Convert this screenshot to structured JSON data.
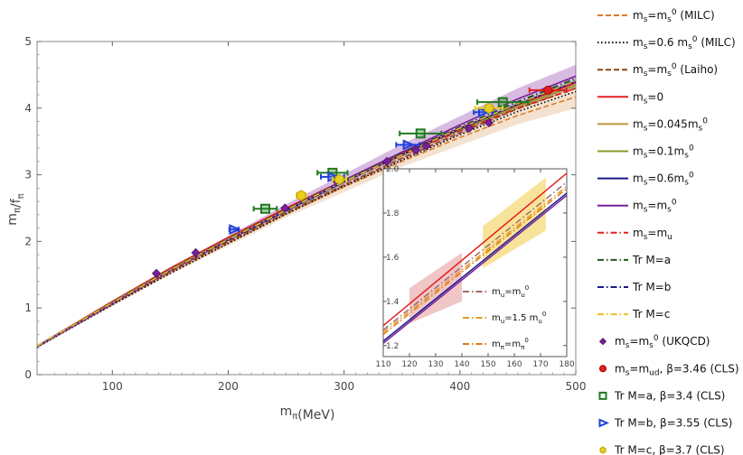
{
  "chart_data": {
    "type": "line",
    "xlabel": "m_π(MeV)",
    "ylabel": "m_π/f_π",
    "xlim": [
      35,
      500
    ],
    "ylim": [
      0,
      5
    ],
    "x_ticks": [
      100,
      200,
      300,
      400,
      500
    ],
    "y_ticks": [
      0,
      1,
      2,
      3,
      4,
      5
    ],
    "series": [
      {
        "name": "ms=ms0 (MILC)",
        "label": "m_s=m_s^0 (MILC)",
        "style": "dash",
        "color": "#e07b2a",
        "x": [
          35,
          100,
          150,
          200,
          250,
          300,
          350,
          400,
          450,
          500
        ],
        "values": [
          0.42,
          1.06,
          1.53,
          1.98,
          2.41,
          2.82,
          3.2,
          3.56,
          3.89,
          4.17
        ]
      },
      {
        "name": "ms=0.6 ms0 (MILC)",
        "label": "m_s=0.6 m_s^0 (MILC)",
        "style": "dot",
        "color": "#000000",
        "x": [
          35,
          100,
          150,
          200,
          250,
          300,
          350,
          400,
          450,
          500
        ],
        "values": [
          0.41,
          1.05,
          1.52,
          1.97,
          2.41,
          2.83,
          3.22,
          3.6,
          3.95,
          4.25
        ]
      },
      {
        "name": "ms=ms0 (Laiho)",
        "label": "m_s=m_s^0 (Laiho)",
        "style": "dash",
        "color": "#8b4513",
        "x": [
          35,
          100,
          150,
          200,
          250,
          300,
          350,
          400,
          450,
          500
        ],
        "values": [
          0.42,
          1.07,
          1.55,
          2.0,
          2.43,
          2.85,
          3.25,
          3.63,
          3.99,
          4.3
        ]
      },
      {
        "name": "ms=0",
        "label": "m_s=0",
        "style": "solid",
        "color": "#e02020",
        "x": [
          35,
          100,
          150,
          200,
          250,
          300,
          350,
          400,
          450,
          500
        ],
        "values": [
          0.43,
          1.1,
          1.6,
          2.06,
          2.5,
          2.92,
          3.32,
          3.7,
          4.05,
          4.38
        ]
      },
      {
        "name": "ms=0.045ms0",
        "label": "m_s=0.045m_s^0",
        "style": "solid",
        "color": "#b8963c",
        "x": [
          35,
          100,
          150,
          200,
          250,
          300,
          350,
          400,
          450,
          500
        ],
        "values": [
          0.43,
          1.09,
          1.58,
          2.04,
          2.48,
          2.9,
          3.3,
          3.68,
          4.03,
          4.35
        ]
      },
      {
        "name": "ms=0.1ms0",
        "label": "m_s=0.1m_s^0",
        "style": "solid",
        "color": "#8f9a2a",
        "x": [
          35,
          100,
          150,
          200,
          250,
          300,
          350,
          400,
          450,
          500
        ],
        "values": [
          0.43,
          1.08,
          1.57,
          2.03,
          2.47,
          2.89,
          3.29,
          3.67,
          4.02,
          4.34
        ]
      },
      {
        "name": "ms=0.6ms0",
        "label": "m_s=0.6m_s^0",
        "style": "solid",
        "color": "#1a1a8a",
        "x": [
          35,
          100,
          150,
          200,
          250,
          300,
          350,
          400,
          450,
          500
        ],
        "values": [
          0.42,
          1.07,
          1.56,
          2.02,
          2.46,
          2.89,
          3.3,
          3.69,
          4.06,
          4.4
        ]
      },
      {
        "name": "ms=ms0",
        "label": "m_s=m_s^0",
        "style": "solid",
        "color": "#7a1f9a",
        "x": [
          35,
          100,
          150,
          200,
          250,
          300,
          350,
          400,
          450,
          500
        ],
        "values": [
          0.42,
          1.07,
          1.56,
          2.03,
          2.48,
          2.92,
          3.34,
          3.75,
          4.14,
          4.48
        ]
      },
      {
        "name": "ms=mu",
        "label": "m_s=m_u",
        "style": "dashdot",
        "color": "#e02020",
        "x": [
          35,
          100,
          150,
          200,
          250,
          300,
          350,
          400,
          450,
          500
        ],
        "values": [
          0.43,
          1.09,
          1.59,
          2.05,
          2.49,
          2.9,
          3.29,
          3.66,
          4.0,
          4.3
        ]
      },
      {
        "name": "Tr M=a",
        "label": "Tr M=a",
        "style": "dashdot",
        "color": "#1f5a1f",
        "x": [
          35,
          100,
          150,
          200,
          250,
          300,
          350,
          400,
          450,
          500
        ],
        "values": [
          0.43,
          1.09,
          1.58,
          2.04,
          2.48,
          2.91,
          3.32,
          3.72,
          4.1,
          4.45
        ]
      },
      {
        "name": "Tr M=b",
        "label": "Tr M=b",
        "style": "dashdot",
        "color": "#1a1a8a",
        "x": [
          35,
          100,
          150,
          200,
          250,
          300,
          350,
          400,
          450,
          500
        ],
        "values": [
          0.43,
          1.08,
          1.57,
          2.03,
          2.47,
          2.9,
          3.31,
          3.71,
          4.08,
          4.42
        ]
      },
      {
        "name": "Tr M=c",
        "label": "Tr M=c",
        "style": "dashdot",
        "color": "#e8c020",
        "x": [
          35,
          100,
          150,
          200,
          250,
          300,
          350,
          400,
          450,
          500
        ],
        "values": [
          0.43,
          1.08,
          1.57,
          2.03,
          2.47,
          2.9,
          3.3,
          3.7,
          4.07,
          4.41
        ]
      }
    ],
    "bands": [
      {
        "name": "ms=ms0 band",
        "color": "#7a1f9a",
        "x": [
          35,
          150,
          250,
          350,
          450,
          500
        ],
        "upper": [
          0.44,
          1.6,
          2.56,
          3.46,
          4.3,
          4.65
        ],
        "lower": [
          0.4,
          1.52,
          2.4,
          3.22,
          3.98,
          4.31
        ]
      },
      {
        "name": "MILC band",
        "color": "#d8a060",
        "x": [
          35,
          150,
          250,
          350,
          450,
          500
        ],
        "upper": [
          0.43,
          1.56,
          2.46,
          3.28,
          4.0,
          4.35
        ],
        "lower": [
          0.41,
          1.5,
          2.36,
          3.12,
          3.76,
          4.0
        ]
      }
    ],
    "points": [
      {
        "name": "ms=ms0 (UKQCD)",
        "label": "m_s=m_s^0 (UKQCD)",
        "marker": "diamond",
        "color": "#7a1f9a",
        "x": [
          138,
          172,
          249,
          292,
          337,
          362,
          371,
          408,
          425
        ],
        "y": [
          1.52,
          1.83,
          2.5,
          2.93,
          3.2,
          3.37,
          3.43,
          3.7,
          3.78
        ],
        "xerr": [
          0,
          0,
          0,
          0,
          0,
          0,
          0,
          0,
          0
        ]
      },
      {
        "name": "ms=mud, beta=3.46 (CLS)",
        "label": "m_s=m_ud, β=3.46 (CLS)",
        "marker": "circle",
        "color": "#e02020",
        "x": [
          476
        ],
        "y": [
          4.27
        ],
        "xerr": [
          16
        ]
      },
      {
        "name": "Tr M=a, beta=3.4 (CLS)",
        "label": "Tr M=a, β=3.4 (CLS)",
        "marker": "square",
        "color": "#1f7a1f",
        "x": [
          232,
          290,
          366,
          437
        ],
        "y": [
          2.49,
          3.03,
          3.62,
          4.09
        ],
        "xerr": [
          10,
          13,
          18,
          22
        ]
      },
      {
        "name": "Tr M=b, beta=3.55 (CLS)",
        "label": "Tr M=b, β=3.55 (CLS)",
        "marker": "triangle",
        "color": "#1f3fd8",
        "x": [
          205,
          290,
          355,
          420
        ],
        "y": [
          2.18,
          2.97,
          3.45,
          3.94
        ],
        "xerr": [
          4,
          10,
          10,
          8
        ]
      },
      {
        "name": "Tr M=c, beta=3.7 (CLS)",
        "label": "Tr M=c, β=3.7 (CLS)",
        "marker": "hexagon",
        "color": "#e8d020",
        "x": [
          263,
          296,
          425
        ],
        "y": [
          2.69,
          2.93,
          4.0
        ],
        "xerr": [
          4,
          6,
          12
        ]
      }
    ],
    "legend_position": "right",
    "inset": {
      "xlim": [
        110,
        180
      ],
      "ylim": [
        1.15,
        2.0
      ],
      "x_ticks": [
        110,
        120,
        130,
        140,
        150,
        160,
        170,
        180
      ],
      "y_ticks": [
        1.2,
        1.4,
        1.6,
        1.8,
        2.0
      ],
      "series": [
        {
          "name": "mu=mu0",
          "label": "m_u=m_u^0",
          "style": "dashdot",
          "color": "#a06a6a",
          "x": [
            110,
            180
          ],
          "values": [
            1.27,
            1.94
          ]
        },
        {
          "name": "mu=1.5 mu0",
          "label": "m_u=1.5 m_u^0",
          "style": "dashdot",
          "color": "#e09a2a",
          "x": [
            110,
            180
          ],
          "values": [
            1.26,
            1.92
          ]
        },
        {
          "name": "mpi=mpi0",
          "label": "m_π=m_π^0",
          "style": "dashdot",
          "color": "#e07a10",
          "x": [
            110,
            180
          ],
          "values": [
            1.25,
            1.91
          ]
        },
        {
          "name": "ms=0 inset",
          "label": "",
          "style": "solid",
          "color": "#e02020",
          "x": [
            110,
            180
          ],
          "values": [
            1.29,
            1.98
          ]
        },
        {
          "name": "ms=ms0 inset",
          "label": "",
          "style": "solid",
          "color": "#1a1a8a",
          "x": [
            110,
            180
          ],
          "values": [
            1.22,
            1.89
          ]
        },
        {
          "name": "ms=0.6ms0 inset",
          "label": "",
          "style": "solid",
          "color": "#7a1f9a",
          "x": [
            110,
            180
          ],
          "values": [
            1.21,
            1.88
          ]
        }
      ],
      "bands": [
        {
          "name": "pink band",
          "color": "#e08080",
          "x": [
            120,
            140
          ],
          "upper": [
            1.46,
            1.62
          ],
          "lower": [
            1.3,
            1.4
          ]
        },
        {
          "name": "yellow band",
          "color": "#f0c020",
          "x": [
            148,
            172
          ],
          "upper": [
            1.74,
            1.96
          ],
          "lower": [
            1.55,
            1.72
          ]
        }
      ],
      "legend_position": "bottom-left"
    }
  }
}
